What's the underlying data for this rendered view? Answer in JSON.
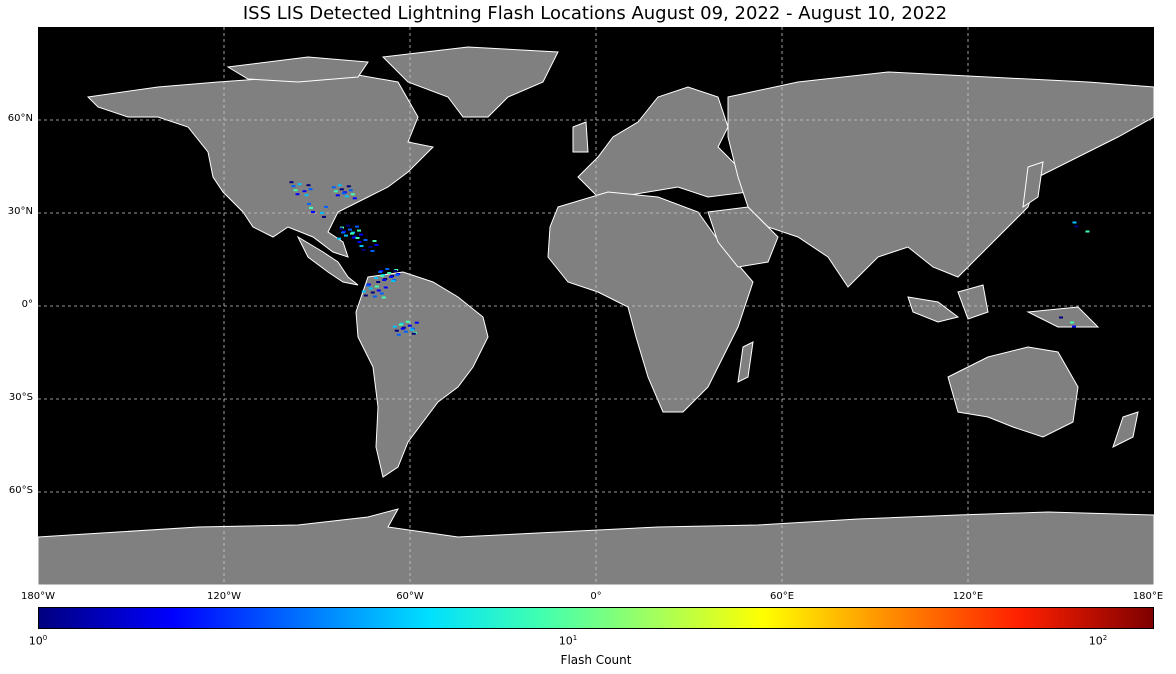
{
  "title": "ISS LIS Detected Lightning Flash Locations August 09, 2022 - August 10, 2022",
  "map": {
    "projection": "equirectangular",
    "extent": {
      "lon": [
        -180,
        180
      ],
      "lat": [
        -90,
        90
      ]
    },
    "ocean_color": "#000000",
    "land_color": "#808080",
    "border_color": "#ffffff",
    "gridlines": "dashed",
    "lat_ticks": [
      "60°N",
      "30°N",
      "0°",
      "30°S",
      "60°S"
    ],
    "lon_ticks": [
      "180°W",
      "120°W",
      "60°W",
      "0°",
      "60°E",
      "120°E",
      "180°E"
    ]
  },
  "colorbar": {
    "label": "Flash Count",
    "scale": "log",
    "tick_base": "10",
    "tick_exponents": [
      "0",
      "1",
      "2"
    ],
    "colormap": "jet"
  },
  "flash_regions": [
    {
      "region": "central United States",
      "lon": -95,
      "lat": 38,
      "count": 3
    },
    {
      "region": "eastern United States",
      "lon": -82,
      "lat": 37,
      "count": 4
    },
    {
      "region": "Gulf coast",
      "lon": -90,
      "lat": 31,
      "count": 2
    },
    {
      "region": "Cuba / Bahamas",
      "lon": -80,
      "lat": 24,
      "count": 5
    },
    {
      "region": "Caribbean",
      "lon": -75,
      "lat": 20,
      "count": 3
    },
    {
      "region": "Venezuela",
      "lon": -68,
      "lat": 10,
      "count": 6
    },
    {
      "region": "Colombia",
      "lon": -72,
      "lat": 5,
      "count": 4
    },
    {
      "region": "Amazon basin",
      "lon": -62,
      "lat": -7,
      "count": 5
    },
    {
      "region": "Western Pacific",
      "lon": 155,
      "lat": 25,
      "count": 1
    },
    {
      "region": "Papua New Guinea",
      "lon": 150,
      "lat": -5,
      "count": 1
    }
  ]
}
